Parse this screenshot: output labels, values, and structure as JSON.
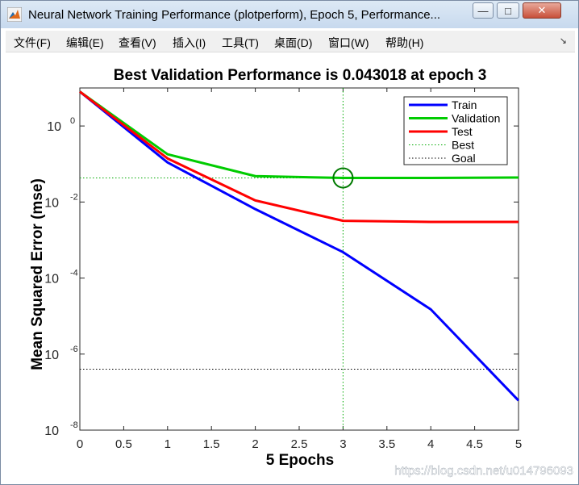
{
  "window": {
    "title": "Neural Network Training Performance (plotperform), Epoch 5, Performance...",
    "minimize_glyph": "—",
    "maximize_glyph": "□",
    "close_glyph": "✕",
    "dock_glyph": "↘"
  },
  "menu": {
    "items": [
      "文件(F)",
      "编辑(E)",
      "查看(V)",
      "插入(I)",
      "工具(T)",
      "桌面(D)",
      "窗口(W)",
      "帮助(H)"
    ]
  },
  "watermark": "https://blog.csdn.net/u014796093",
  "chart_data": {
    "type": "line",
    "title": "Best Validation Performance is 0.043018 at epoch 3",
    "xlabel": "5 Epochs",
    "ylabel": "Mean Squared Error  (mse)",
    "xlim": [
      0,
      5
    ],
    "ylim": [
      1e-08,
      10
    ],
    "yscale": "log",
    "x_ticks": [
      "0",
      "0.5",
      "1",
      "1.5",
      "2",
      "2.5",
      "3",
      "3.5",
      "4",
      "4.5",
      "5"
    ],
    "y_ticks": [
      {
        "base": "10",
        "exp": "0"
      },
      {
        "base": "10",
        "exp": "-2"
      },
      {
        "base": "10",
        "exp": "-4"
      },
      {
        "base": "10",
        "exp": "-6"
      },
      {
        "base": "10",
        "exp": "-8"
      }
    ],
    "x": [
      0,
      1,
      2,
      3,
      4,
      5
    ],
    "series": [
      {
        "name": "Train",
        "color": "#0000ff",
        "values": [
          8,
          0.11,
          0.0065,
          0.00048,
          1.5e-05,
          6e-08
        ]
      },
      {
        "name": "Validation",
        "color": "#00cc00",
        "values": [
          8,
          0.18,
          0.048,
          0.043018,
          0.043,
          0.044
        ]
      },
      {
        "name": "Test",
        "color": "#ff0000",
        "values": [
          8,
          0.14,
          0.011,
          0.0032,
          0.003,
          0.003
        ]
      }
    ],
    "best": {
      "name": "Best",
      "color": "#00aa00",
      "epoch": 3,
      "value": 0.043018
    },
    "goal": {
      "name": "Goal",
      "color": "#000000",
      "value": 4e-07
    },
    "legend_position": "top-right",
    "grid": false
  }
}
